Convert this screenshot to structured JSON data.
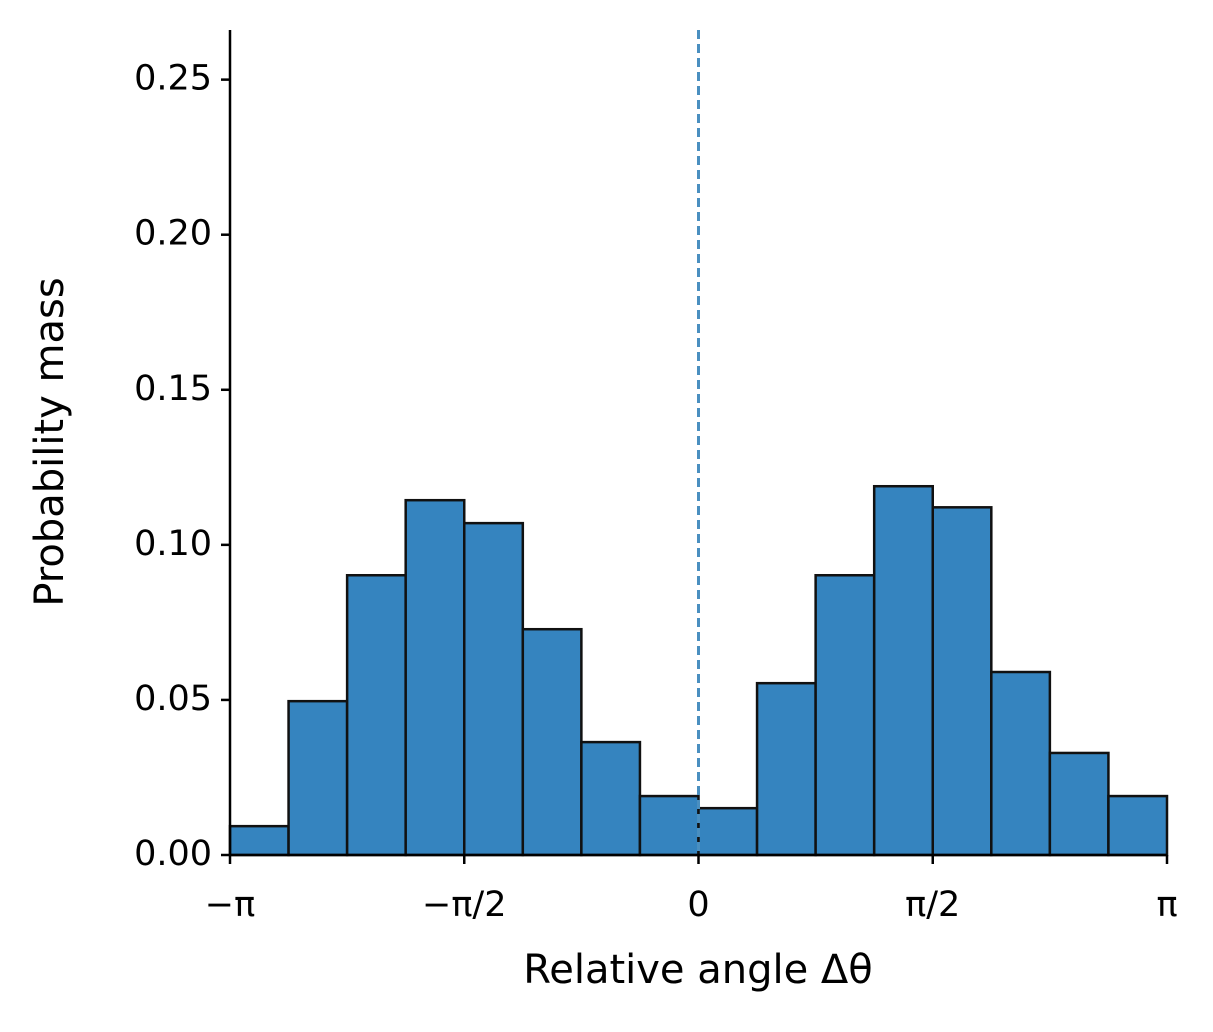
{
  "chart_data": {
    "type": "histogram",
    "xlabel": "Relative angle Δθ",
    "ylabel": "Probability mass",
    "bins": [
      -3.14159,
      -2.74889,
      -2.35619,
      -1.9635,
      -1.5708,
      -1.1781,
      -0.7854,
      -0.3927,
      0,
      0.3927,
      0.7854,
      1.1781,
      1.5708,
      1.9635,
      2.35619,
      2.74889,
      3.14159
    ],
    "counts": [
      0.0093,
      0.0496,
      0.0902,
      0.1144,
      0.107,
      0.0728,
      0.0364,
      0.019,
      0.0151,
      0.0554,
      0.0902,
      0.1189,
      0.1121,
      0.059,
      0.0329,
      0.019
    ],
    "color": "#3584bf",
    "edgecolor": "#111111",
    "vline": 0,
    "vline_color": "#4a8fc0",
    "xlim": [
      -3.14159,
      3.14159
    ],
    "ylim": [
      0,
      0.266
    ],
    "xticks": [
      {
        "value": -3.14159,
        "label": "−π"
      },
      {
        "value": -1.5708,
        "label": "−π/2"
      },
      0,
      {
        "value": 1.5708,
        "label": "π/2"
      },
      {
        "value": 3.14159,
        "label": "π"
      }
    ],
    "yticks": [
      {
        "value": 0,
        "label": "0.00"
      },
      {
        "value": 0.05,
        "label": "0.05"
      },
      {
        "value": 0.1,
        "label": "0.10"
      },
      {
        "value": 0.15,
        "label": "0.15"
      },
      {
        "value": 0.2,
        "label": "0.20"
      },
      {
        "value": 0.25,
        "label": "0.25"
      }
    ]
  }
}
